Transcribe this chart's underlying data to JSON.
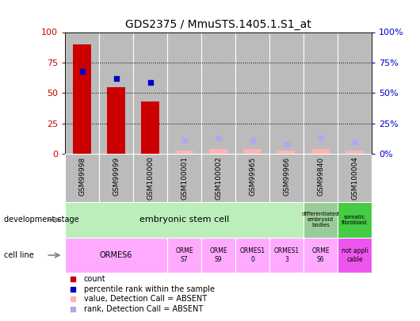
{
  "title": "GDS2375 / MmuSTS.1405.1.S1_at",
  "samples": [
    "GSM99998",
    "GSM99999",
    "GSM100000",
    "GSM100001",
    "GSM100002",
    "GSM99965",
    "GSM99966",
    "GSM99840",
    "GSM100004"
  ],
  "count_values": [
    90,
    55,
    43,
    3,
    4,
    4,
    3,
    4,
    3
  ],
  "rank_values": [
    68,
    62,
    59,
    11,
    13,
    11,
    8,
    13,
    10
  ],
  "count_absent": [
    false,
    false,
    false,
    true,
    true,
    true,
    true,
    true,
    true
  ],
  "rank_absent": [
    false,
    false,
    false,
    true,
    true,
    true,
    true,
    true,
    true
  ],
  "colors": {
    "count_present": "#cc0000",
    "count_absent": "#ffb3b3",
    "rank_present": "#0000cc",
    "rank_absent": "#aaaaee",
    "embryonic_stem_cell": "#bbeebb",
    "differentiated": "#99cc99",
    "somatic_fibroblast": "#44cc44",
    "cell_line_pink": "#ffaaff",
    "cell_line_magenta": "#ee44ee",
    "tick_left": "#cc0000",
    "tick_right": "#0000cc",
    "col_bg": "#bbbbbb"
  },
  "yticks": [
    0,
    25,
    50,
    75,
    100
  ],
  "dev_stage_labels": {
    "embryonic": "embryonic stem cell",
    "differentiated": "differentiated\nembryoid\nbodies",
    "somatic": "somatic\nfibroblast"
  },
  "cell_line_data": [
    {
      "label": "ORMES6",
      "cols": [
        0,
        1,
        2
      ],
      "color": "#ffaaff"
    },
    {
      "label": "ORME\nS7",
      "cols": [
        3
      ],
      "color": "#ffaaff"
    },
    {
      "label": "ORME\nS9",
      "cols": [
        4
      ],
      "color": "#ffaaff"
    },
    {
      "label": "ORMES1\n0",
      "cols": [
        5
      ],
      "color": "#ffaaff"
    },
    {
      "label": "ORMES1\n3",
      "cols": [
        6
      ],
      "color": "#ffaaff"
    },
    {
      "label": "ORME\nS6",
      "cols": [
        7
      ],
      "color": "#ffaaff"
    },
    {
      "label": "not appli\ncable",
      "cols": [
        8
      ],
      "color": "#ee55ee"
    }
  ],
  "legend_items": [
    {
      "label": "count",
      "color": "#cc0000"
    },
    {
      "label": "percentile rank within the sample",
      "color": "#0000cc"
    },
    {
      "label": "value, Detection Call = ABSENT",
      "color": "#ffb3b3"
    },
    {
      "label": "rank, Detection Call = ABSENT",
      "color": "#aaaaee"
    }
  ]
}
